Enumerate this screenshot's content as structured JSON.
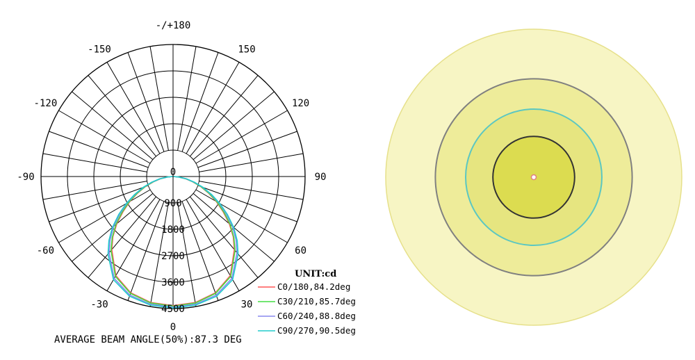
{
  "chart_data": [
    {
      "type": "polar-line",
      "radial_axis": {
        "range": [
          0,
          4500
        ],
        "ticks": [
          "0",
          "900",
          "1800",
          "2700",
          "3600",
          "4500"
        ]
      },
      "angular_axis": {
        "labels": [
          "-/+180",
          "150",
          "120",
          "90",
          "60",
          "30",
          "0",
          "-30",
          "-60",
          "-90",
          "-120",
          "-150"
        ]
      },
      "unit_label": "UNIT:cd",
      "legend_placement": "bottom-right",
      "series": [
        {
          "name": "C0/180,84.2deg",
          "color": "#ff5555",
          "angles": [
            0,
            10,
            20,
            30,
            40,
            45,
            50,
            55,
            60,
            65,
            70,
            75,
            80,
            85,
            90
          ],
          "values": [
            4400,
            4360,
            4220,
            3900,
            3250,
            2900,
            2500,
            2080,
            1700,
            1330,
            1000,
            690,
            430,
            190,
            20
          ]
        },
        {
          "name": "C30/210,85.7deg",
          "color": "#44dd44",
          "angles": [
            0,
            10,
            20,
            30,
            40,
            45,
            50,
            55,
            60,
            65,
            70,
            75,
            80,
            85,
            90
          ],
          "values": [
            4420,
            4380,
            4240,
            3930,
            3290,
            2930,
            2540,
            2120,
            1730,
            1360,
            1020,
            700,
            440,
            195,
            20
          ]
        },
        {
          "name": "C60/240,88.8deg",
          "color": "#8888ee",
          "angles": [
            0,
            10,
            20,
            30,
            40,
            45,
            50,
            55,
            60,
            65,
            70,
            75,
            80,
            85,
            90
          ],
          "values": [
            4450,
            4420,
            4300,
            4010,
            3390,
            3030,
            2640,
            2210,
            1810,
            1420,
            1070,
            740,
            460,
            205,
            20
          ]
        },
        {
          "name": "C90/270,90.5deg",
          "color": "#22cccc",
          "angles": [
            0,
            10,
            20,
            30,
            40,
            45,
            50,
            55,
            60,
            65,
            70,
            75,
            80,
            85,
            90
          ],
          "values": [
            4480,
            4450,
            4340,
            4060,
            3450,
            3090,
            2700,
            2260,
            1850,
            1450,
            1090,
            760,
            470,
            210,
            20
          ]
        }
      ],
      "footer": "AVERAGE BEAM ANGLE(50%):87.3 DEG"
    },
    {
      "type": "contour",
      "center_marker_color": "#e08080",
      "levels": [
        {
          "fraction": 1.0,
          "fill": "#f7f5c4",
          "stroke": "#e6e08a"
        },
        {
          "fraction": 0.665,
          "fill": "#eeec9a",
          "stroke": "#808080"
        },
        {
          "fraction": 0.46,
          "fill": "#e6e580",
          "stroke": "#5bc7c2"
        },
        {
          "fraction": 0.276,
          "fill": "#dcdc50",
          "stroke": "#333333"
        }
      ]
    }
  ]
}
